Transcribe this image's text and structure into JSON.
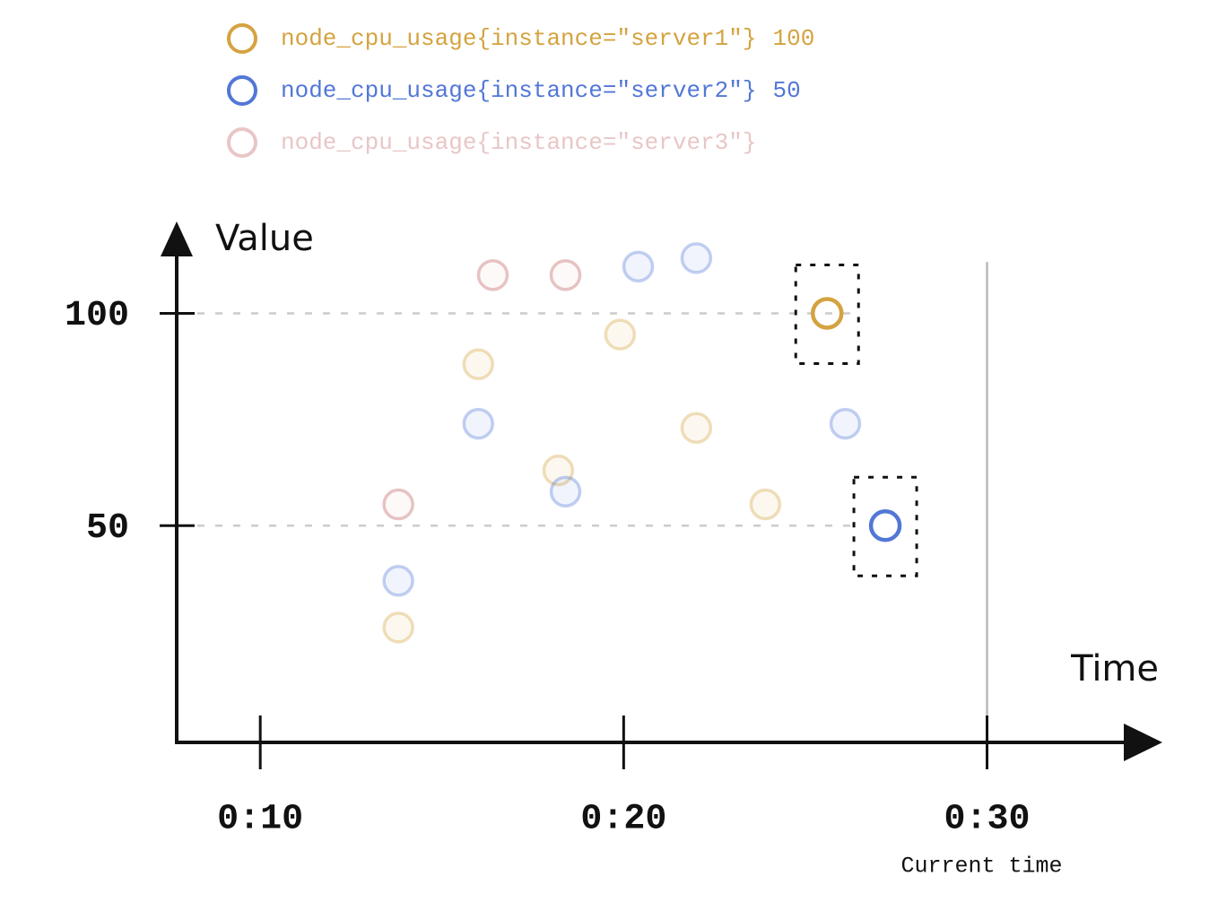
{
  "chart_data": {
    "type": "scatter",
    "xlabel": "Time",
    "ylabel": "Value",
    "xlim": [
      7.7,
      34.8
    ],
    "ylim": [
      0,
      121
    ],
    "xticks": [
      {
        "value": 10,
        "label": "0:10"
      },
      {
        "value": 20,
        "label": "0:20"
      },
      {
        "value": 30,
        "label": "0:30"
      }
    ],
    "yticks": [
      50,
      100
    ],
    "current_time": 30,
    "current_time_label": "Current time",
    "series": [
      {
        "name": "node_cpu_usage{instance=\"server1\"}",
        "color": "#d4a340",
        "current_value": 100,
        "x": [
          13.8,
          16.0,
          18.2,
          19.9,
          22.0,
          23.9,
          25.6
        ],
        "values": [
          26,
          88,
          63,
          95,
          73,
          55,
          100
        ]
      },
      {
        "name": "node_cpu_usage{instance=\"server2\"}",
        "color": "#5277d6",
        "current_value": 50,
        "x": [
          13.8,
          16.0,
          18.4,
          20.4,
          22.0,
          26.1,
          27.2
        ],
        "values": [
          37,
          74,
          58,
          111,
          113,
          74,
          50
        ]
      },
      {
        "name": "node_cpu_usage{instance=\"server3\"}",
        "color": "#e3b8b8",
        "x": [
          13.8,
          16.4,
          18.4
        ],
        "values": [
          55,
          109,
          109
        ]
      }
    ]
  }
}
